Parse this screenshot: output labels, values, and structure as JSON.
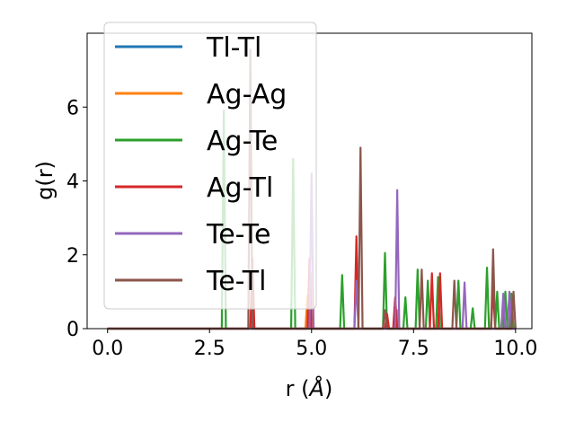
{
  "chart_data": {
    "type": "line",
    "xlabel_main": "r (",
    "xlabel_unit": "Å",
    "xlabel_close": ")",
    "ylabel": "g(r)",
    "xlim": [
      -0.5,
      10.4
    ],
    "ylim": [
      0,
      8.0
    ],
    "xticks": [
      0.0,
      2.5,
      5.0,
      7.5,
      10.0
    ],
    "xtick_labels": [
      "0.0",
      "2.5",
      "5.0",
      "7.5",
      "10.0"
    ],
    "yticks": [
      0,
      2,
      4,
      6
    ],
    "ytick_labels": [
      "0",
      "2",
      "4",
      "6"
    ],
    "grid": false,
    "legend_position": "top-left",
    "series": [
      {
        "name": "Tl-Tl",
        "color": "#1f77b4",
        "peaks": []
      },
      {
        "name": "Ag-Ag",
        "color": "#ff7f0e",
        "peaks": [
          [
            4.9,
            0.9
          ],
          [
            5.0,
            1.5
          ],
          [
            7.1,
            0.5
          ],
          [
            9.7,
            0.6
          ]
        ]
      },
      {
        "name": "Ag-Te",
        "color": "#2ca02c",
        "peaks": [
          [
            2.85,
            5.9
          ],
          [
            4.55,
            4.6
          ],
          [
            5.75,
            1.45
          ],
          [
            6.8,
            2.05
          ],
          [
            7.3,
            0.85
          ],
          [
            7.6,
            1.6
          ],
          [
            7.85,
            1.3
          ],
          [
            8.1,
            1.4
          ],
          [
            8.6,
            1.3
          ],
          [
            8.95,
            0.55
          ],
          [
            9.3,
            1.65
          ],
          [
            9.55,
            1.0
          ],
          [
            9.75,
            1.0
          ],
          [
            9.9,
            0.95
          ]
        ]
      },
      {
        "name": "Ag-Tl",
        "color": "#d62728",
        "peaks": [
          [
            3.55,
            1.9
          ],
          [
            4.95,
            1.9
          ],
          [
            6.1,
            2.5
          ],
          [
            6.85,
            0.4
          ],
          [
            7.05,
            0.85
          ],
          [
            7.95,
            1.5
          ],
          [
            8.15,
            1.5
          ],
          [
            9.45,
            1.1
          ]
        ]
      },
      {
        "name": "Te-Te",
        "color": "#9467bd",
        "peaks": [
          [
            5.0,
            4.2
          ],
          [
            6.1,
            1.3
          ],
          [
            7.1,
            3.75
          ],
          [
            8.75,
            1.25
          ],
          [
            9.7,
            0.95
          ],
          [
            9.85,
            1.0
          ]
        ]
      },
      {
        "name": "Te-Tl",
        "color": "#8c564b",
        "peaks": [
          [
            3.5,
            7.55
          ],
          [
            6.2,
            4.9
          ],
          [
            6.8,
            0.5
          ],
          [
            7.7,
            1.6
          ],
          [
            8.5,
            1.3
          ],
          [
            9.45,
            2.15
          ],
          [
            9.95,
            1.0
          ]
        ]
      }
    ]
  }
}
